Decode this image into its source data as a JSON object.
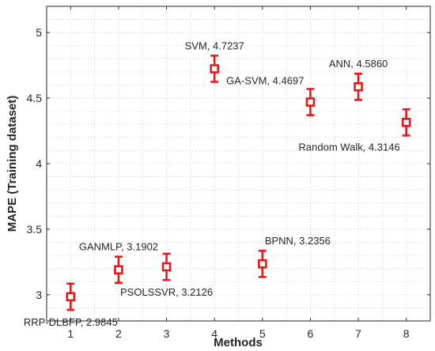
{
  "chart_data": {
    "type": "scatter",
    "xlabel": "Methods",
    "ylabel": "MAPE (Training dataset)",
    "xlim": [
      0.5,
      8.5
    ],
    "ylim": [
      2.8,
      5.2
    ],
    "xticks": [
      1,
      2,
      3,
      4,
      5,
      6,
      7,
      8
    ],
    "yticks": [
      3,
      3.5,
      4,
      4.5,
      5
    ],
    "ytick_labels": [
      "3",
      "3.5",
      "4",
      "4.5",
      "5"
    ],
    "grid": true,
    "marker_color": "#e31a1c",
    "error_bar": 0.1,
    "points": [
      {
        "x": 1,
        "y": 2.9845,
        "label": "RRP-DLBFP, 2.9845",
        "label_pos": "below"
      },
      {
        "x": 2,
        "y": 3.1902,
        "label": "GANMLP, 3.1902",
        "label_pos": "above"
      },
      {
        "x": 3,
        "y": 3.2126,
        "label": "PSOLSSVR, 3.2126",
        "label_pos": "below"
      },
      {
        "x": 4,
        "y": 4.7237,
        "label": "SVM, 4.7237",
        "label_pos": "above"
      },
      {
        "x": 5,
        "y": 3.2356,
        "label": "BPNN, 3.2356",
        "label_pos": "above-right"
      },
      {
        "x": 6,
        "y": 4.4697,
        "label": "GA-SVM, 4.4697",
        "label_pos": "above-left"
      },
      {
        "x": 7,
        "y": 4.586,
        "label": "ANN, 4.5860",
        "label_pos": "above"
      },
      {
        "x": 8,
        "y": 4.3146,
        "label": "Random Walk, 4.3146",
        "label_pos": "below-left"
      }
    ]
  }
}
